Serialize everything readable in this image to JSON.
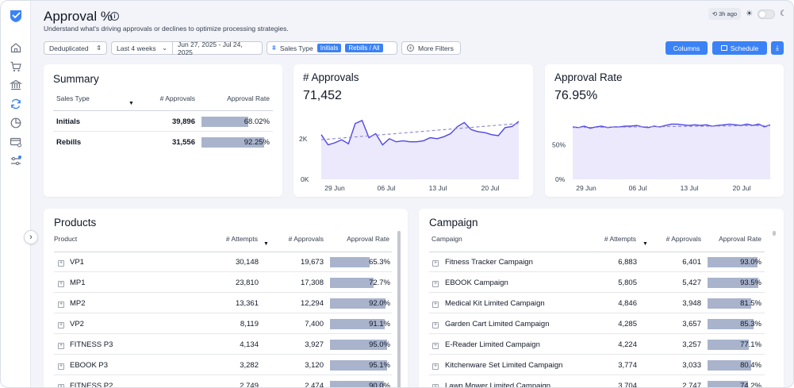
{
  "header": {
    "title": "Approval %",
    "subtitle": "Understand what's driving approvals or declines to optimize processing strategies.",
    "last_updated": "3h ago"
  },
  "filters": {
    "dedup": "Deduplicated",
    "period": "Last 4 weeks",
    "date_range": "Jun 27, 2025 - Jul 24, 2025",
    "sales_type_label": "Sales Type",
    "chip_initials": "Initials",
    "chip_rebills": "Rebills / All",
    "more_filters": "More Filters"
  },
  "actions": {
    "columns": "Columns",
    "schedule": "Schedule"
  },
  "summary": {
    "title": "Summary",
    "headers": [
      "Sales Type",
      "# Approvals",
      "Approval Rate"
    ],
    "rows": [
      {
        "type": "Initials",
        "approvals": "39,896",
        "rate": "68.02%",
        "rate_value": 68.02
      },
      {
        "type": "Rebills",
        "approvals": "31,556",
        "rate": "92.25%",
        "rate_value": 92.25
      }
    ]
  },
  "approvals_card": {
    "title": "# Approvals",
    "value": "71,452"
  },
  "rate_card": {
    "title": "Approval Rate",
    "value": "76.95%"
  },
  "products": {
    "title": "Products",
    "headers": [
      "Product",
      "# Attempts",
      "# Approvals",
      "Approval Rate"
    ],
    "rows": [
      {
        "name": "VP1",
        "attempts": "30,148",
        "approvals": "19,673",
        "rate": "65.3%",
        "rate_value": 65.3
      },
      {
        "name": "MP1",
        "attempts": "23,810",
        "approvals": "17,308",
        "rate": "72.7%",
        "rate_value": 72.7
      },
      {
        "name": "MP2",
        "attempts": "13,361",
        "approvals": "12,294",
        "rate": "92.0%",
        "rate_value": 92.0
      },
      {
        "name": "VP2",
        "attempts": "8,119",
        "approvals": "7,400",
        "rate": "91.1%",
        "rate_value": 91.1
      },
      {
        "name": "FITNESS P3",
        "attempts": "4,134",
        "approvals": "3,927",
        "rate": "95.0%",
        "rate_value": 95.0
      },
      {
        "name": "EBOOK P3",
        "attempts": "3,282",
        "approvals": "3,120",
        "rate": "95.1%",
        "rate_value": 95.1
      },
      {
        "name": "FITNESS P2",
        "attempts": "2,749",
        "approvals": "2,474",
        "rate": "90.0%",
        "rate_value": 90.0
      }
    ]
  },
  "campaign": {
    "title": "Campaign",
    "headers": [
      "Campaign",
      "# Attempts",
      "# Approvals",
      "Approval Rate"
    ],
    "rows": [
      {
        "name": "Fitness Tracker Campaign",
        "attempts": "6,883",
        "approvals": "6,401",
        "rate": "93.0%",
        "rate_value": 93.0
      },
      {
        "name": "EBOOK Campaign",
        "attempts": "5,805",
        "approvals": "5,427",
        "rate": "93.5%",
        "rate_value": 93.5
      },
      {
        "name": "Medical Kit Limited Campaign",
        "attempts": "4,846",
        "approvals": "3,948",
        "rate": "81.5%",
        "rate_value": 81.5
      },
      {
        "name": "Garden Cart Limited Campaign",
        "attempts": "4,285",
        "approvals": "3,657",
        "rate": "85.3%",
        "rate_value": 85.3
      },
      {
        "name": "E-Reader Limited Campaign",
        "attempts": "4,224",
        "approvals": "3,257",
        "rate": "77.1%",
        "rate_value": 77.1
      },
      {
        "name": "Kitchenware Set Limited Campaign",
        "attempts": "3,774",
        "approvals": "3,033",
        "rate": "80.4%",
        "rate_value": 80.4
      },
      {
        "name": "Lawn Mower Limited Campaign",
        "attempts": "3,704",
        "approvals": "2,747",
        "rate": "74.2%",
        "rate_value": 74.2
      }
    ]
  },
  "chart_data": [
    {
      "type": "area",
      "title": "# Approvals",
      "x_ticks": [
        "29 Jun",
        "06 Jul",
        "13 Jul",
        "20 Jul"
      ],
      "y_ticks": [
        "0K",
        "2K"
      ],
      "ylim": [
        0,
        3400
      ],
      "values": [
        2200,
        1700,
        1800,
        1950,
        1750,
        2750,
        2900,
        2050,
        2250,
        1700,
        2000,
        1850,
        1900,
        1850,
        1850,
        1900,
        2050,
        2000,
        2100,
        2250,
        2600,
        2800,
        2450,
        2350,
        2300,
        2200,
        2150,
        2550,
        2600,
        2850
      ],
      "trend": [
        1950,
        2750
      ],
      "colors": {
        "line": "#4f46e5",
        "fill": "#ebe9fb",
        "trend": "#8b84d6"
      }
    },
    {
      "type": "area",
      "title": "Approval Rate",
      "x_ticks": [
        "29 Jun",
        "06 Jul",
        "13 Jul",
        "20 Jul"
      ],
      "y_ticks": [
        "0%",
        "50%"
      ],
      "ylim": [
        0,
        100
      ],
      "values": [
        76,
        75,
        77,
        74,
        76,
        77,
        75,
        76,
        76,
        77,
        77,
        78,
        76,
        75,
        77,
        76,
        78,
        80,
        80,
        79,
        78,
        79,
        78,
        79,
        77,
        78,
        79,
        80,
        79,
        78,
        80,
        78,
        80,
        76,
        79
      ],
      "trend": [
        75,
        78
      ],
      "colors": {
        "line": "#4f46e5",
        "fill": "#ebe9fb",
        "trend": "#8b84d6"
      }
    }
  ]
}
